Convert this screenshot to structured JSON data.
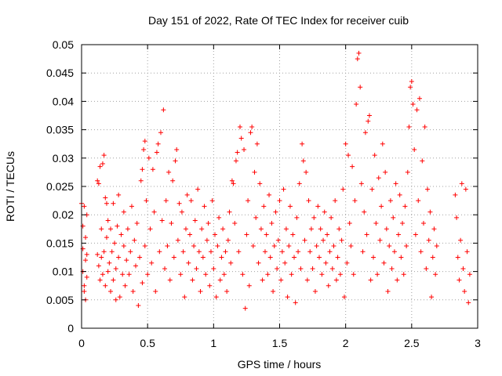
{
  "chart_data": {
    "type": "scatter",
    "title": "Day 151 of 2022, Rate Of TEC Index for receiver cuib",
    "xlabel": "GPS time / hours",
    "ylabel": "ROTI / TECUs",
    "xlim": [
      0,
      3
    ],
    "ylim": [
      0,
      0.05
    ],
    "xticks": [
      "0",
      "0.5",
      "1",
      "1.5",
      "2",
      "2.5",
      "3"
    ],
    "yticks": [
      "0",
      "0.005",
      "0.01",
      "0.015",
      "0.02",
      "0.025",
      "0.03",
      "0.035",
      "0.04",
      "0.045",
      "0.05"
    ],
    "grid": true,
    "marker": "plus",
    "color": "#ff0000",
    "points": [
      [
        0.0,
        0.022
      ],
      [
        0.01,
        0.018
      ],
      [
        0.01,
        0.014
      ],
      [
        0.01,
        0.01
      ],
      [
        0.02,
        0.0075
      ],
      [
        0.02,
        0.0065
      ],
      [
        0.02,
        0.0215
      ],
      [
        0.03,
        0.012
      ],
      [
        0.03,
        0.005
      ],
      [
        0.03,
        0.016
      ],
      [
        0.04,
        0.02
      ],
      [
        0.04,
        0.013
      ],
      [
        0.04,
        0.009
      ],
      [
        0.12,
        0.013
      ],
      [
        0.12,
        0.026
      ],
      [
        0.13,
        0.0255
      ],
      [
        0.13,
        0.011
      ],
      [
        0.14,
        0.0085
      ],
      [
        0.14,
        0.0285
      ],
      [
        0.15,
        0.0175
      ],
      [
        0.15,
        0.0125
      ],
      [
        0.16,
        0.029
      ],
      [
        0.16,
        0.0095
      ],
      [
        0.17,
        0.0305
      ],
      [
        0.17,
        0.0135
      ],
      [
        0.18,
        0.023
      ],
      [
        0.18,
        0.0075
      ],
      [
        0.19,
        0.022
      ],
      [
        0.19,
        0.016
      ],
      [
        0.2,
        0.01
      ],
      [
        0.2,
        0.019
      ],
      [
        0.21,
        0.0115
      ],
      [
        0.22,
        0.0065
      ],
      [
        0.22,
        0.0175
      ],
      [
        0.23,
        0.0135
      ],
      [
        0.24,
        0.0085
      ],
      [
        0.24,
        0.022
      ],
      [
        0.25,
        0.015
      ],
      [
        0.26,
        0.005
      ],
      [
        0.26,
        0.0105
      ],
      [
        0.27,
        0.018
      ],
      [
        0.28,
        0.0125
      ],
      [
        0.28,
        0.0235
      ],
      [
        0.29,
        0.0055
      ],
      [
        0.3,
        0.0165
      ],
      [
        0.31,
        0.0095
      ],
      [
        0.32,
        0.0145
      ],
      [
        0.32,
        0.0205
      ],
      [
        0.33,
        0.0075
      ],
      [
        0.34,
        0.012
      ],
      [
        0.35,
        0.0175
      ],
      [
        0.36,
        0.0095
      ],
      [
        0.37,
        0.0135
      ],
      [
        0.38,
        0.0215
      ],
      [
        0.39,
        0.0065
      ],
      [
        0.4,
        0.0155
      ],
      [
        0.41,
        0.011
      ],
      [
        0.42,
        0.0185
      ],
      [
        0.43,
        0.004
      ],
      [
        0.44,
        0.0125
      ],
      [
        0.45,
        0.026
      ],
      [
        0.46,
        0.028
      ],
      [
        0.46,
        0.008
      ],
      [
        0.47,
        0.0315
      ],
      [
        0.48,
        0.033
      ],
      [
        0.48,
        0.0145
      ],
      [
        0.49,
        0.0225
      ],
      [
        0.5,
        0.0095
      ],
      [
        0.51,
        0.03
      ],
      [
        0.52,
        0.0175
      ],
      [
        0.53,
        0.0115
      ],
      [
        0.54,
        0.028
      ],
      [
        0.55,
        0.0205
      ],
      [
        0.56,
        0.0065
      ],
      [
        0.57,
        0.031
      ],
      [
        0.58,
        0.0325
      ],
      [
        0.59,
        0.0135
      ],
      [
        0.6,
        0.0345
      ],
      [
        0.61,
        0.019
      ],
      [
        0.62,
        0.0385
      ],
      [
        0.63,
        0.0105
      ],
      [
        0.64,
        0.0225
      ],
      [
        0.65,
        0.0145
      ],
      [
        0.66,
        0.0275
      ],
      [
        0.67,
        0.0085
      ],
      [
        0.68,
        0.0185
      ],
      [
        0.69,
        0.026
      ],
      [
        0.7,
        0.0125
      ],
      [
        0.71,
        0.0295
      ],
      [
        0.72,
        0.0315
      ],
      [
        0.73,
        0.0155
      ],
      [
        0.74,
        0.022
      ],
      [
        0.75,
        0.0095
      ],
      [
        0.76,
        0.0205
      ],
      [
        0.77,
        0.0135
      ],
      [
        0.78,
        0.0055
      ],
      [
        0.79,
        0.0175
      ],
      [
        0.8,
        0.0235
      ],
      [
        0.81,
        0.0115
      ],
      [
        0.82,
        0.0165
      ],
      [
        0.83,
        0.0225
      ],
      [
        0.84,
        0.0085
      ],
      [
        0.85,
        0.0145
      ],
      [
        0.86,
        0.019
      ],
      [
        0.87,
        0.0105
      ],
      [
        0.88,
        0.0245
      ],
      [
        0.89,
        0.0135
      ],
      [
        0.9,
        0.0065
      ],
      [
        0.91,
        0.0175
      ],
      [
        0.92,
        0.0125
      ],
      [
        0.93,
        0.0215
      ],
      [
        0.94,
        0.0095
      ],
      [
        0.95,
        0.0155
      ],
      [
        0.96,
        0.0185
      ],
      [
        0.97,
        0.0075
      ],
      [
        0.98,
        0.0135
      ],
      [
        0.99,
        0.0225
      ],
      [
        1.0,
        0.0105
      ],
      [
        1.01,
        0.0165
      ],
      [
        1.02,
        0.0055
      ],
      [
        1.03,
        0.0145
      ],
      [
        1.04,
        0.0195
      ],
      [
        1.05,
        0.0085
      ],
      [
        1.06,
        0.0125
      ],
      [
        1.07,
        0.0175
      ],
      [
        1.08,
        0.0095
      ],
      [
        1.09,
        0.0135
      ],
      [
        1.1,
        0.0065
      ],
      [
        1.11,
        0.0155
      ],
      [
        1.12,
        0.0205
      ],
      [
        1.13,
        0.0115
      ],
      [
        1.14,
        0.026
      ],
      [
        1.15,
        0.0255
      ],
      [
        1.16,
        0.0185
      ],
      [
        1.17,
        0.0295
      ],
      [
        1.18,
        0.031
      ],
      [
        1.19,
        0.0135
      ],
      [
        1.2,
        0.0355
      ],
      [
        1.21,
        0.0335
      ],
      [
        1.22,
        0.0095
      ],
      [
        1.23,
        0.0315
      ],
      [
        1.24,
        0.0035
      ],
      [
        1.25,
        0.0165
      ],
      [
        1.26,
        0.0225
      ],
      [
        1.27,
        0.0075
      ],
      [
        1.28,
        0.0345
      ],
      [
        1.29,
        0.0355
      ],
      [
        1.3,
        0.0145
      ],
      [
        1.31,
        0.0275
      ],
      [
        1.32,
        0.0195
      ],
      [
        1.33,
        0.0325
      ],
      [
        1.34,
        0.0115
      ],
      [
        1.35,
        0.0255
      ],
      [
        1.36,
        0.0175
      ],
      [
        1.37,
        0.0085
      ],
      [
        1.38,
        0.0215
      ],
      [
        1.39,
        0.0135
      ],
      [
        1.4,
        0.0165
      ],
      [
        1.41,
        0.0095
      ],
      [
        1.42,
        0.0235
      ],
      [
        1.43,
        0.0125
      ],
      [
        1.44,
        0.0185
      ],
      [
        1.45,
        0.0065
      ],
      [
        1.46,
        0.0145
      ],
      [
        1.47,
        0.0205
      ],
      [
        1.48,
        0.0105
      ],
      [
        1.49,
        0.0155
      ],
      [
        1.5,
        0.0225
      ],
      [
        1.51,
        0.0085
      ],
      [
        1.52,
        0.0135
      ],
      [
        1.53,
        0.0245
      ],
      [
        1.54,
        0.0115
      ],
      [
        1.55,
        0.0175
      ],
      [
        1.56,
        0.0055
      ],
      [
        1.57,
        0.0145
      ],
      [
        1.58,
        0.0215
      ],
      [
        1.59,
        0.0095
      ],
      [
        1.6,
        0.0165
      ],
      [
        1.61,
        0.0125
      ],
      [
        1.62,
        0.0045
      ],
      [
        1.63,
        0.0195
      ],
      [
        1.64,
        0.0135
      ],
      [
        1.65,
        0.0255
      ],
      [
        1.66,
        0.0105
      ],
      [
        1.67,
        0.0325
      ],
      [
        1.68,
        0.0295
      ],
      [
        1.69,
        0.0155
      ],
      [
        1.7,
        0.0275
      ],
      [
        1.71,
        0.0085
      ],
      [
        1.72,
        0.0225
      ],
      [
        1.73,
        0.0135
      ],
      [
        1.74,
        0.0175
      ],
      [
        1.75,
        0.0105
      ],
      [
        1.76,
        0.0195
      ],
      [
        1.77,
        0.0065
      ],
      [
        1.78,
        0.0145
      ],
      [
        1.79,
        0.0215
      ],
      [
        1.8,
        0.0125
      ],
      [
        1.81,
        0.0175
      ],
      [
        1.82,
        0.0095
      ],
      [
        1.83,
        0.0155
      ],
      [
        1.84,
        0.0205
      ],
      [
        1.85,
        0.0115
      ],
      [
        1.86,
        0.0165
      ],
      [
        1.87,
        0.0075
      ],
      [
        1.88,
        0.0135
      ],
      [
        1.89,
        0.0195
      ],
      [
        1.9,
        0.0105
      ],
      [
        1.91,
        0.0145
      ],
      [
        1.92,
        0.0225
      ],
      [
        1.93,
        0.0085
      ],
      [
        1.94,
        0.0125
      ],
      [
        1.95,
        0.0175
      ],
      [
        1.96,
        0.0095
      ],
      [
        1.97,
        0.0155
      ],
      [
        1.98,
        0.0245
      ],
      [
        1.99,
        0.0055
      ],
      [
        2.0,
        0.0325
      ],
      [
        2.01,
        0.0115
      ],
      [
        2.02,
        0.0305
      ],
      [
        2.03,
        0.0185
      ],
      [
        2.04,
        0.0145
      ],
      [
        2.05,
        0.0285
      ],
      [
        2.06,
        0.0095
      ],
      [
        2.07,
        0.0225
      ],
      [
        2.08,
        0.0395
      ],
      [
        2.09,
        0.0475
      ],
      [
        2.1,
        0.0485
      ],
      [
        2.11,
        0.0425
      ],
      [
        2.12,
        0.0255
      ],
      [
        2.13,
        0.0135
      ],
      [
        2.14,
        0.0205
      ],
      [
        2.15,
        0.0345
      ],
      [
        2.16,
        0.0165
      ],
      [
        2.17,
        0.0365
      ],
      [
        2.18,
        0.0375
      ],
      [
        2.19,
        0.0085
      ],
      [
        2.2,
        0.0245
      ],
      [
        2.21,
        0.0125
      ],
      [
        2.22,
        0.0305
      ],
      [
        2.23,
        0.0185
      ],
      [
        2.24,
        0.0095
      ],
      [
        2.25,
        0.0265
      ],
      [
        2.26,
        0.0155
      ],
      [
        2.27,
        0.0215
      ],
      [
        2.28,
        0.0325
      ],
      [
        2.29,
        0.0115
      ],
      [
        2.3,
        0.0275
      ],
      [
        2.31,
        0.0175
      ],
      [
        2.32,
        0.0065
      ],
      [
        2.33,
        0.0145
      ],
      [
        2.34,
        0.0225
      ],
      [
        2.35,
        0.0105
      ],
      [
        2.36,
        0.0195
      ],
      [
        2.37,
        0.0135
      ],
      [
        2.38,
        0.0255
      ],
      [
        2.39,
        0.0085
      ],
      [
        2.4,
        0.0165
      ],
      [
        2.41,
        0.0235
      ],
      [
        2.42,
        0.0125
      ],
      [
        2.43,
        0.0185
      ],
      [
        2.44,
        0.0095
      ],
      [
        2.45,
        0.0215
      ],
      [
        2.46,
        0.0145
      ],
      [
        2.47,
        0.0275
      ],
      [
        2.48,
        0.0355
      ],
      [
        2.49,
        0.0425
      ],
      [
        2.5,
        0.0435
      ],
      [
        2.51,
        0.0395
      ],
      [
        2.52,
        0.0315
      ],
      [
        2.53,
        0.0165
      ],
      [
        2.54,
        0.0385
      ],
      [
        2.55,
        0.0225
      ],
      [
        2.56,
        0.0405
      ],
      [
        2.57,
        0.0135
      ],
      [
        2.58,
        0.0295
      ],
      [
        2.59,
        0.0185
      ],
      [
        2.6,
        0.0355
      ],
      [
        2.61,
        0.0105
      ],
      [
        2.62,
        0.0245
      ],
      [
        2.63,
        0.0155
      ],
      [
        2.64,
        0.0205
      ],
      [
        2.65,
        0.0055
      ],
      [
        2.66,
        0.0125
      ],
      [
        2.67,
        0.0175
      ],
      [
        2.68,
        0.0095
      ],
      [
        2.69,
        0.0145
      ],
      [
        2.83,
        0.0235
      ],
      [
        2.84,
        0.0195
      ],
      [
        2.85,
        0.0125
      ],
      [
        2.86,
        0.0085
      ],
      [
        2.87,
        0.0155
      ],
      [
        2.88,
        0.0255
      ],
      [
        2.89,
        0.0105
      ],
      [
        2.9,
        0.0065
      ],
      [
        2.91,
        0.0245
      ],
      [
        2.92,
        0.0135
      ],
      [
        2.93,
        0.0045
      ],
      [
        2.94,
        0.0095
      ]
    ]
  }
}
